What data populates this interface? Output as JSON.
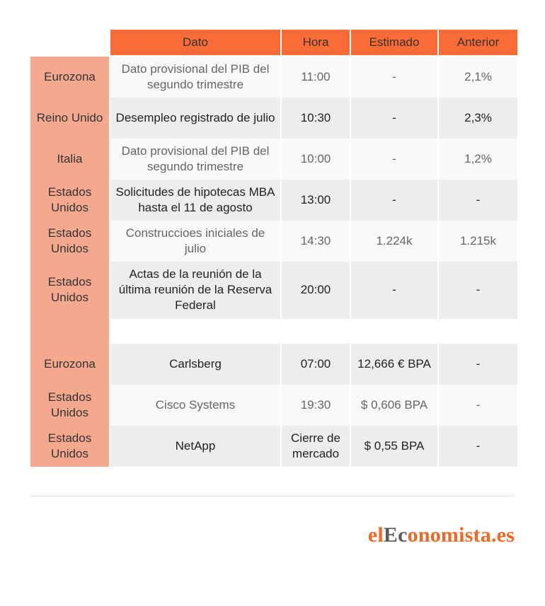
{
  "header": {
    "columns": [
      "Dato",
      "Hora",
      "Estimado",
      "Anterior"
    ]
  },
  "macro_rows": [
    {
      "country": "Eurozona",
      "dato": "Dato provisional del PIB del segundo trimestre",
      "hora": "11:00",
      "estimado": "-",
      "anterior": "2,1%"
    },
    {
      "country": "Reino Unido",
      "dato": "Desempleo registrado de julio",
      "hora": "10:30",
      "estimado": "-",
      "anterior": "2,3%"
    },
    {
      "country": "Italia",
      "dato": "Dato provisional del PIB del segundo trimestre",
      "hora": "10:00",
      "estimado": "-",
      "anterior": "1,2%"
    },
    {
      "country": "Estados Unidos",
      "dato": "Solicitudes de hipotecas MBA hasta el 11 de agosto",
      "hora": "13:00",
      "estimado": "-",
      "anterior": "-"
    },
    {
      "country": "Estados Unidos",
      "dato": "Construccioes iniciales de julio",
      "hora": "14:30",
      "estimado": "1.224k",
      "anterior": "1.215k"
    },
    {
      "country": "Estados Unidos",
      "dato": "Actas de la reunión de la última reunión de la Reserva Federal",
      "hora": "20:00",
      "estimado": "-",
      "anterior": "-"
    }
  ],
  "earnings_rows": [
    {
      "country": "Eurozona",
      "dato": "Carlsberg",
      "hora": "07:00",
      "estimado": "12,666 € BPA",
      "anterior": "-"
    },
    {
      "country": "Estados Unidos",
      "dato": "Cisco Systems",
      "hora": "19:30",
      "estimado": "$ 0,606 BPA",
      "anterior": "-"
    },
    {
      "country": "Estados Unidos",
      "dato": "NetApp",
      "hora": "Cierre de mercado",
      "estimado": "$ 0,55 BPA",
      "anterior": "-"
    }
  ],
  "logo": {
    "part1": "el",
    "part2": "Ec",
    "part3": "onomista.es"
  }
}
